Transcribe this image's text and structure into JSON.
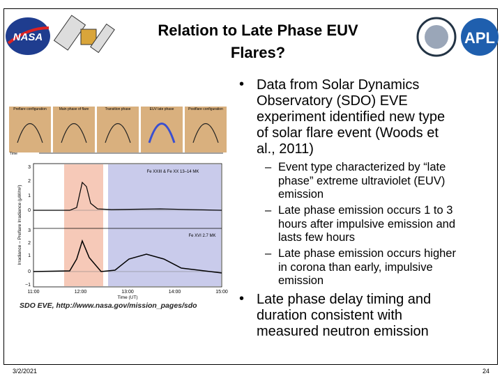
{
  "header": {
    "title": "Relation to Late Phase EUV Flares?",
    "logos": [
      "NASA",
      "APL"
    ]
  },
  "bullets": [
    {
      "text": "Data from Solar Dynamics Observatory (SDO) EVE experiment identified new type of solar flare event (Woods et al., 2011)",
      "sub": [
        "Event type characterized by “late phase” extreme ultraviolet (EUV) emission",
        "Late phase emission occurs 1 to 3 hours after impulsive emission and lasts few hours",
        "Late phase emission occurs higher in corona than early, impulsive emission"
      ]
    },
    {
      "text": "Late phase delay timing and duration consistent with measured neutron emission",
      "sub": []
    }
  ],
  "figure": {
    "panels": [
      "Preflare configuration",
      "Main phase of flare",
      "Transition phase",
      "EUV late phase",
      "Postflare configuration"
    ],
    "time_label": "Time",
    "notes": [
      "Fe XXIII & Fe XX 13–14 MK",
      "Fe XVI 2.7 MK"
    ],
    "y_label": "Irradiance – Preflare Irradiance (μW/m²)",
    "x_label": "Time (UT)",
    "y_ticks_top": [
      "3",
      "2",
      "1",
      "0"
    ],
    "y_ticks_bottom": [
      "3",
      "2",
      "1",
      "0",
      "−1"
    ],
    "x_ticks": [
      "11:00",
      "12:00",
      "13:00",
      "14:00",
      "15:00"
    ]
  },
  "caption": "SDO EVE, http://www.nasa.gov/mission_pages/sdo",
  "footer": {
    "date": "3/2/2021",
    "page": "24"
  }
}
